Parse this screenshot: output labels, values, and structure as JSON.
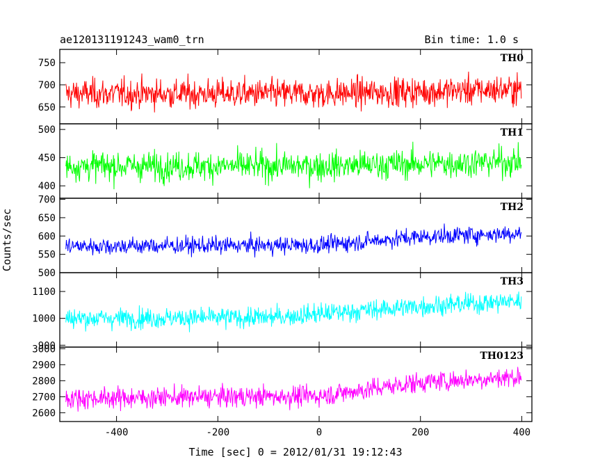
{
  "header": {
    "title": "ae120131191243_wam0_trn",
    "bin_time": "Bin time: 1.0 s"
  },
  "chart_data": {
    "type": "line",
    "xlabel": "Time [sec] 0 = 2012/01/31 19:12:43",
    "ylabel": "Counts/sec",
    "xlim": [
      -512,
      420
    ],
    "x_ticks": [
      -400,
      -200,
      0,
      200,
      400
    ],
    "x_tick_labels": [
      "-400",
      "-200",
      "0",
      "200",
      "400"
    ],
    "x_start": -500,
    "x_end": 399,
    "bin": 1.0,
    "panels": [
      {
        "name": "TH0",
        "color": "#ff0000",
        "ylim": [
          612,
          780
        ],
        "yticks": [
          650,
          700,
          750
        ],
        "trend": [
          [
            -500,
            680
          ],
          [
            0,
            680
          ],
          [
            400,
            690
          ]
        ],
        "spread": 28
      },
      {
        "name": "TH1",
        "color": "#00ff00",
        "ylim": [
          378,
          510
        ],
        "yticks": [
          400,
          450,
          500
        ],
        "trend": [
          [
            -500,
            435
          ],
          [
            0,
            435
          ],
          [
            400,
            443
          ]
        ],
        "spread": 22
      },
      {
        "name": "TH2",
        "color": "#0000ff",
        "ylim": [
          500,
          703
        ],
        "yticks": [
          500,
          550,
          600,
          650,
          700
        ],
        "trend": [
          [
            -500,
            572
          ],
          [
            0,
            575
          ],
          [
            200,
            598
          ],
          [
            400,
            608
          ]
        ],
        "spread": 20
      },
      {
        "name": "TH3",
        "color": "#00ffff",
        "ylim": [
          893,
          1170
        ],
        "yticks": [
          900,
          1000,
          1100
        ],
        "trend": [
          [
            -500,
            1000
          ],
          [
            -100,
            1003
          ],
          [
            200,
            1045
          ],
          [
            400,
            1065
          ]
        ],
        "spread": 32
      },
      {
        "name": "TH0123",
        "color": "#ff00ff",
        "ylim": [
          2545,
          3010
        ],
        "yticks": [
          2600,
          2700,
          2800,
          2900,
          3000
        ],
        "trend": [
          [
            -500,
            2690
          ],
          [
            0,
            2705
          ],
          [
            200,
            2790
          ],
          [
            400,
            2825
          ]
        ],
        "spread": 55
      }
    ]
  }
}
